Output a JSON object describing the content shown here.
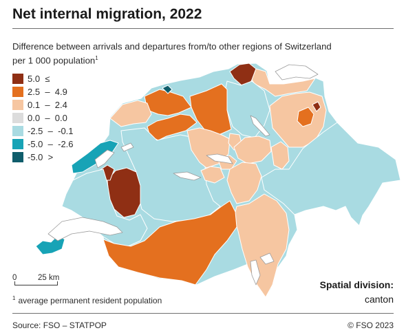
{
  "title": "Net internal migration, 2022",
  "subtitle": "Difference between arrivals and departures from/to other regions of Switzerland per 1 000 population",
  "subtitle_sup": "1",
  "legend": [
    {
      "label_a": "5.0",
      "label_b": "≤",
      "label_c": "",
      "color": "#8f2f14"
    },
    {
      "label_a": "2.5",
      "label_b": "–",
      "label_c": "4.9",
      "color": "#e4701f"
    },
    {
      "label_a": "0.1",
      "label_b": "–",
      "label_c": "2.4",
      "color": "#f6c6a1"
    },
    {
      "label_a": "0.0",
      "label_b": "–",
      "label_c": "0.0",
      "color": "#dcdcdc"
    },
    {
      "label_a": "-2.5",
      "label_b": "–",
      "label_c": "-0.1",
      "color": "#a9dbe2"
    },
    {
      "label_a": "-5.0",
      "label_b": "–",
      "label_c": "-2.6",
      "color": "#17a3b6"
    },
    {
      "label_a": "-5.0",
      "label_b": ">",
      "label_c": "",
      "color": "#0f5d6b"
    }
  ],
  "scale": {
    "start": "0",
    "end": "25 km"
  },
  "footnote": {
    "marker": "1",
    "text": "average permanent resident population"
  },
  "spatial_division": {
    "label": "Spatial division:",
    "value": "canton"
  },
  "source": "Source: FSO – STATPOP",
  "copyright": "© FSO 2023"
}
